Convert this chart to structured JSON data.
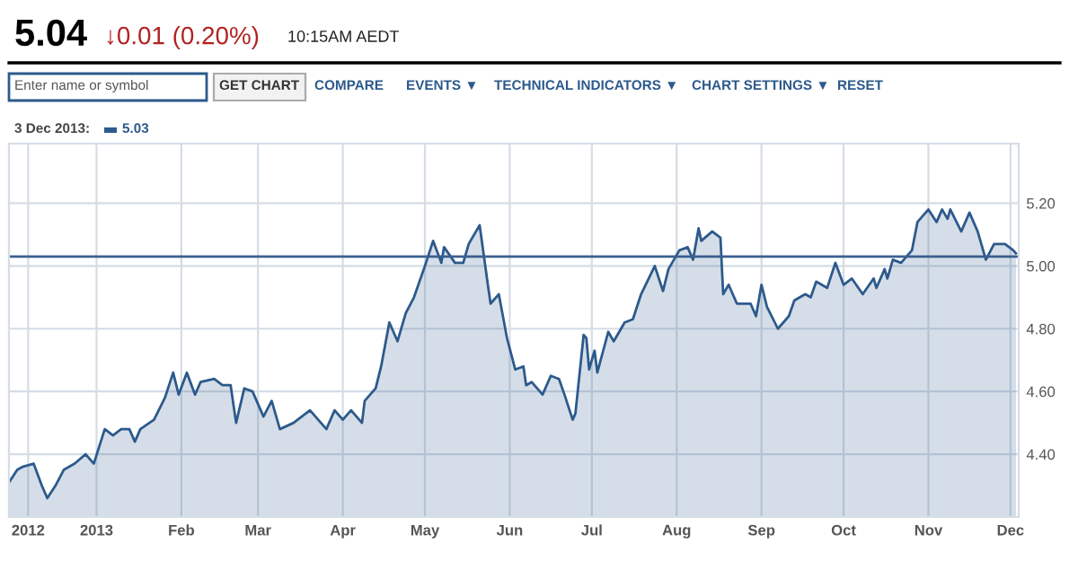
{
  "chart_data": {
    "type": "area",
    "annotations": [
      "5.04",
      "↓0.01 (0.20%)",
      "10:15AM AEDT",
      "Enter name or symbol",
      "GET CHART",
      "COMPARE",
      "EVENTS ▼",
      "TECHNICAL INDICATORS ▼",
      "CHART SETTINGS ▼",
      "RESET",
      "3 Dec 2013:",
      "5.03"
    ],
    "series": [
      {
        "color": "#2d5a8c",
        "x": [
          "2012-11-30",
          "2012-12-03",
          "2012-12-05",
          "2012-12-09",
          "2012-12-12",
          "2012-12-14",
          "2012-12-17",
          "2012-12-20",
          "2012-12-24",
          "2012-12-28",
          "2012-12-31",
          "2013-01-04",
          "2013-01-07",
          "2013-01-10",
          "2013-01-13",
          "2013-01-15",
          "2013-01-17",
          "2013-01-22",
          "2013-01-26",
          "2013-01-29",
          "2013-01-31",
          "2013-02-03",
          "2013-02-06",
          "2013-02-08",
          "2013-02-13",
          "2013-02-16",
          "2013-02-19",
          "2013-02-21",
          "2013-02-24",
          "2013-02-27",
          "2013-03-03",
          "2013-03-06",
          "2013-03-09",
          "2013-03-14",
          "2013-03-20",
          "2013-03-26",
          "2013-03-29",
          "2013-04-01",
          "2013-04-04",
          "2013-04-08",
          "2013-04-09",
          "2013-04-13",
          "2013-04-15",
          "2013-04-18",
          "2013-04-21",
          "2013-04-24",
          "2013-04-27",
          "2013-05-01",
          "2013-05-04",
          "2013-05-07",
          "2013-05-08",
          "2013-05-12",
          "2013-05-15",
          "2013-05-17",
          "2013-05-21",
          "2013-05-24",
          "2013-05-25",
          "2013-05-28",
          "2013-05-31",
          "2013-06-03",
          "2013-06-06",
          "2013-06-07",
          "2013-06-09",
          "2013-06-11",
          "2013-06-13",
          "2013-06-16",
          "2013-06-19",
          "2013-06-21",
          "2013-06-24",
          "2013-06-25",
          "2013-06-28",
          "2013-06-29",
          "2013-06-30",
          "2013-07-02",
          "2013-07-03",
          "2013-07-07",
          "2013-07-09",
          "2013-07-13",
          "2013-07-16",
          "2013-07-19",
          "2013-07-24",
          "2013-07-27",
          "2013-07-29",
          "2013-08-02",
          "2013-08-05",
          "2013-08-07",
          "2013-08-09",
          "2013-08-10",
          "2013-08-14",
          "2013-08-17",
          "2013-08-18",
          "2013-08-20",
          "2013-08-23",
          "2013-08-28",
          "2013-08-30",
          "2013-09-01",
          "2013-09-03",
          "2013-09-07",
          "2013-09-11",
          "2013-09-13",
          "2013-09-17",
          "2013-09-19",
          "2013-09-21",
          "2013-09-25",
          "2013-09-28",
          "2013-10-01",
          "2013-10-04",
          "2013-10-08",
          "2013-10-12",
          "2013-10-13",
          "2013-10-16",
          "2013-10-17",
          "2013-10-19",
          "2013-10-22",
          "2013-10-26",
          "2013-10-28",
          "2013-11-01",
          "2013-11-04",
          "2013-11-06",
          "2013-11-08",
          "2013-11-09",
          "2013-11-13",
          "2013-11-16",
          "2013-11-19",
          "2013-11-22",
          "2013-11-25",
          "2013-11-29",
          "2013-12-02",
          "2013-12-03"
        ],
        "values": [
          4.31,
          4.35,
          4.36,
          4.37,
          4.3,
          4.26,
          4.3,
          4.35,
          4.37,
          4.4,
          4.37,
          4.48,
          4.46,
          4.48,
          4.48,
          4.44,
          4.48,
          4.51,
          4.58,
          4.66,
          4.59,
          4.66,
          4.59,
          4.63,
          4.64,
          4.62,
          4.62,
          4.5,
          4.61,
          4.6,
          4.52,
          4.57,
          4.48,
          4.5,
          4.54,
          4.48,
          4.54,
          4.51,
          4.54,
          4.5,
          4.57,
          4.61,
          4.68,
          4.82,
          4.76,
          4.85,
          4.9,
          5.0,
          5.08,
          5.01,
          5.06,
          5.01,
          5.01,
          5.07,
          5.13,
          4.94,
          4.88,
          4.91,
          4.77,
          4.67,
          4.68,
          4.62,
          4.63,
          4.61,
          4.59,
          4.65,
          4.64,
          4.59,
          4.51,
          4.53,
          4.78,
          4.77,
          4.67,
          4.73,
          4.66,
          4.79,
          4.76,
          4.82,
          4.83,
          4.91,
          5.0,
          4.92,
          4.99,
          5.05,
          5.06,
          5.02,
          5.12,
          5.08,
          5.11,
          5.09,
          4.91,
          4.94,
          4.88,
          4.88,
          4.84,
          4.94,
          4.87,
          4.8,
          4.84,
          4.89,
          4.91,
          4.9,
          4.95,
          4.93,
          5.01,
          4.94,
          4.96,
          4.91,
          4.96,
          4.93,
          4.99,
          4.96,
          5.02,
          5.01,
          5.05,
          5.14,
          5.18,
          5.14,
          5.18,
          5.15,
          5.18,
          5.11,
          5.17,
          5.11,
          5.02,
          5.07,
          5.07,
          5.05,
          5.04
        ]
      }
    ],
    "xlim": [
      "2012-11-30",
      "2013-12-04"
    ],
    "xticks": [
      {
        "value": "2012-12-07",
        "label": "2012"
      },
      {
        "value": "2013-01-01",
        "label": "2013"
      },
      {
        "value": "2013-02-01",
        "label": "Feb"
      },
      {
        "value": "2013-03-01",
        "label": "Mar"
      },
      {
        "value": "2013-04-01",
        "label": "Apr"
      },
      {
        "value": "2013-05-01",
        "label": "May"
      },
      {
        "value": "2013-06-01",
        "label": "Jun"
      },
      {
        "value": "2013-07-01",
        "label": "Jul"
      },
      {
        "value": "2013-08-01",
        "label": "Aug"
      },
      {
        "value": "2013-09-01",
        "label": "Sep"
      },
      {
        "value": "2013-10-01",
        "label": "Oct"
      },
      {
        "value": "2013-11-01",
        "label": "Nov"
      },
      {
        "value": "2013-12-01",
        "label": "Dec"
      }
    ],
    "ylim": [
      4.2,
      5.39
    ],
    "yticks": [
      {
        "value": 4.4,
        "label": "4.40"
      },
      {
        "value": 4.6,
        "label": "4.60"
      },
      {
        "value": 4.8,
        "label": "4.80"
      },
      {
        "value": 5.0,
        "label": "5.00"
      },
      {
        "value": 5.2,
        "label": "5.20"
      }
    ],
    "ref_lines": [
      {
        "axis": "y",
        "value": 5.03,
        "color": "#3a5f8f"
      }
    ],
    "grid": true
  }
}
